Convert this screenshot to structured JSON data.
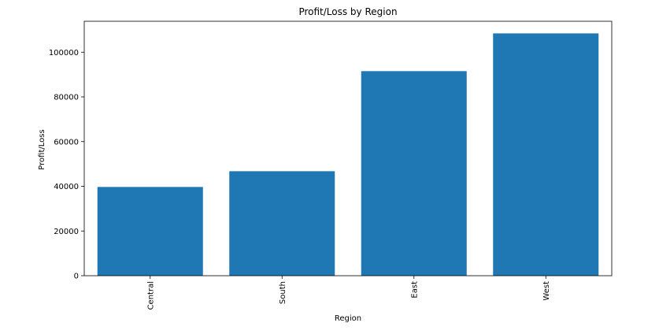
{
  "chart_data": {
    "type": "bar",
    "title": "Profit/Loss by Region",
    "xlabel": "Region",
    "ylabel": "Profit/Loss",
    "categories": [
      "Central",
      "South",
      "East",
      "West"
    ],
    "values": [
      39706,
      46749,
      91523,
      108418
    ],
    "ylim": [
      0,
      113839
    ],
    "yticks": [
      0,
      20000,
      40000,
      60000,
      80000,
      100000
    ],
    "bar_color": "#1f77b4",
    "grid": false,
    "legend": "none",
    "xtick_rotation": "vertical"
  }
}
